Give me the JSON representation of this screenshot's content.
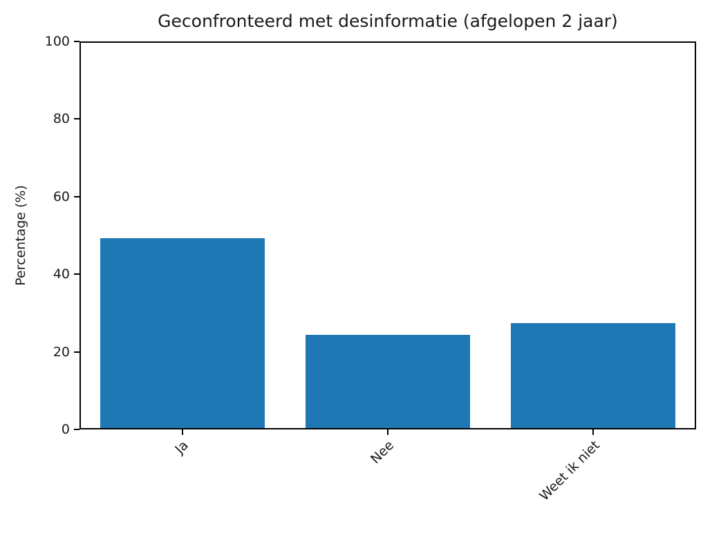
{
  "chart_data": {
    "type": "bar",
    "title": "Geconfronteerd met desinformatie (afgelopen 2 jaar)",
    "categories": [
      "Ja",
      "Nee",
      "Weet ik niet"
    ],
    "values": [
      49,
      24,
      27
    ],
    "xlabel": "",
    "ylabel": "Percentage (%)",
    "ylim": [
      0,
      100
    ],
    "yticks": [
      0,
      20,
      40,
      60,
      80,
      100
    ],
    "bar_color": "#1f77b4",
    "axis_color": "#000000",
    "text_color": "#1a1a1a",
    "background": "#ffffff",
    "grid": false,
    "legend": null,
    "bar_width_fraction": 0.8,
    "x_label_rotation_deg": 45
  }
}
